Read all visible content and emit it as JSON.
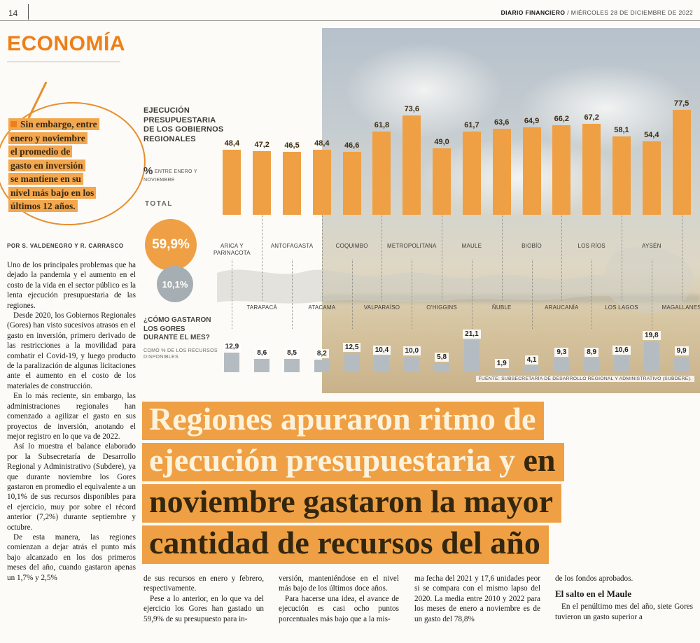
{
  "masthead": {
    "page_number": "14",
    "brand": "DIARIO FINANCIERO",
    "date": "/ MIÉRCOLES 28 DE DICIEMBRE DE 2022"
  },
  "section": {
    "title": "ECONOMÍA"
  },
  "pull_quote": {
    "lines": [
      "Sin embargo, entre",
      "enero y noviembre",
      "el promedio de",
      "gasto en inversión",
      "se mantiene en su",
      "nivel más bajo en los",
      "últimos 12 años."
    ]
  },
  "byline": "POR S. VALDENEGRO Y R. CARRASCO",
  "article": {
    "col1": [
      "Uno de los principales problemas que ha dejado la pandemia y el aumento en el costo de la vida en el sector público es la lenta ejecución presupuestaria de las regiones.",
      "Desde 2020, los Gobiernos Regionales (Gores) han visto sucesivos atrasos en el gasto en inversión, primero derivado de las restricciones a la movilidad para combatir el Covid-19, y luego producto de la paralización de algunas licitaciones ante el aumento en el costo de los materiales de construcción.",
      "En lo más reciente, sin embargo, las administraciones regionales han comenzado a agilizar el gasto en sus proyectos de inversión, anotando el mejor registro en lo que va de 2022.",
      "Así lo muestra el balance elaborado por la Subsecretaría de Desarrollo Regional y Administrativo (Subdere), ya que durante noviembre los Gores gastaron en promedio el equivalente a un 10,1% de sus recursos disponibles para el ejercicio, muy por sobre el récord anterior (7,2%) durante septiembre y octubre.",
      "De esta manera, las regiones comienzan a dejar atrás el punto más bajo alcanzado en los dos primeros meses del año, cuando gastaron apenas un 1,7% y 2,5%"
    ],
    "col2": [
      "de sus recursos en enero y febrero, respectivamente.",
      "Pese a lo anterior, en lo que va del ejercicio los Gores han gastado un 59,9% de su presupuesto para in-"
    ],
    "col3": [
      "versión, manteniéndose en el nivel más bajo de los últimos doce años.",
      "Para hacerse una idea, el avance de ejecución es casi ocho puntos porcentuales más bajo que a la mis-"
    ],
    "col4": [
      "ma fecha del 2021 y 17,6 unidades peor si se compara con el mismo lapso del 2020. La media entre 2010 y 2022 para los meses de enero a noviembre es de un gasto del 78,8%"
    ],
    "col5": {
      "p1": "de los fondos aprobados.",
      "subhead": "El salto en el Maule",
      "p2": "En el penúltimo mes del año, siete Gores tuvieron un gasto superior a"
    }
  },
  "headline": {
    "line1_light": "Regiones apuraron ritmo de",
    "line2_light": "ejecución presupuestaria y ",
    "line2_dark": "en",
    "line3_dark": "noviembre gastaron la mayor",
    "line4_dark": "cantidad de recursos del año"
  },
  "chart_data": {
    "type": "bar",
    "title": "EJECUCIÓN PRESUPUESTARIA DE LOS GOBIERNOS REGIONALES",
    "subtitle_symbol": "%",
    "subtitle_text": "ENTRE ENERO Y NOVIEMBRE",
    "total_label": "TOTAL",
    "total_value": "59,9%",
    "total_secondary": "10,1%",
    "question": "¿CÓMO GASTARON LOS GORES DURANTE EL MES?",
    "question_note": "COMO % DE LOS RECURSOS DISPONIBLES",
    "source": "FUENTE: SUBSECRETARÍA DE DESARROLLO REGIONAL Y ADMINISTRATIVO (SUBDERE).",
    "categories": [
      "ARICA Y PARINACOTA",
      "TARAPACÁ",
      "ANTOFAGASTA",
      "ATACAMA",
      "COQUIMBO",
      "VALPARAÍSO",
      "METROPOLITANA",
      "O’HIGGINS",
      "MAULE",
      "ÑUBLE",
      "BIOBÍO",
      "ARAUCANÍA",
      "LOS RÍOS",
      "LOS LAGOS",
      "AYSÉN",
      "MAGALLANES"
    ],
    "series": [
      {
        "name": "Ejecución presupuestaria (% entre enero y noviembre)",
        "values": [
          48.4,
          47.2,
          46.5,
          48.4,
          46.6,
          61.8,
          73.6,
          49.0,
          61.7,
          63.6,
          64.9,
          66.2,
          67.2,
          58.1,
          54.4,
          77.5
        ]
      },
      {
        "name": "Gasto del mes (como % de los recursos disponibles)",
        "values": [
          12.9,
          8.6,
          8.5,
          8.2,
          12.5,
          10.4,
          10.0,
          5.8,
          21.1,
          1.9,
          4.1,
          9.3,
          8.9,
          10.6,
          19.8,
          9.9
        ]
      }
    ],
    "ylim": [
      0,
      80
    ],
    "grid": false,
    "legend_position": "none",
    "colors": {
      "execution_bar": "#efa044",
      "monthly_bar": "#b4bcc2",
      "total_circle": "#efa044",
      "secondary_circle": "#a7aeb3"
    }
  }
}
